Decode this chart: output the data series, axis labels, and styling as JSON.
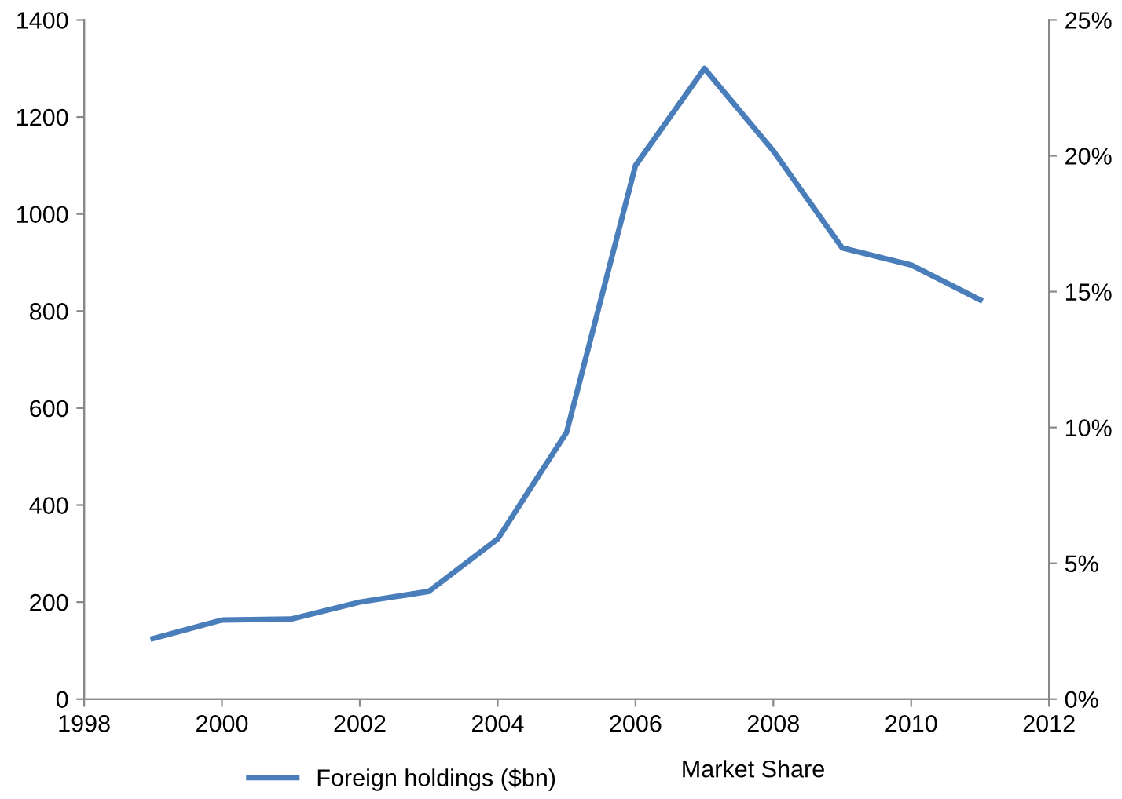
{
  "chart_data": {
    "type": "line",
    "x": [
      1999,
      2000,
      2001,
      2002,
      2003,
      2004,
      2005,
      2006,
      2007,
      2008,
      2009,
      2010,
      2011
    ],
    "series": [
      {
        "name": "Foreign holdings ($bn)",
        "color": "#4a7ebb",
        "values": [
          125,
          163,
          165,
          200,
          222,
          330,
          550,
          1100,
          1300,
          1130,
          930,
          895,
          823
        ]
      }
    ],
    "annotations": [
      "Market Share"
    ],
    "xlim": [
      1998,
      2012
    ],
    "xticks": [
      1998,
      2000,
      2002,
      2004,
      2006,
      2008,
      2010,
      2012
    ],
    "ylim": [
      0,
      1400
    ],
    "yticks": [
      0,
      200,
      400,
      600,
      800,
      1000,
      1200,
      1400
    ],
    "y2lim": [
      0,
      25
    ],
    "y2ticks": [
      {
        "value": 0,
        "label": "0%"
      },
      {
        "value": 5,
        "label": "5%"
      },
      {
        "value": 10,
        "label": "10%"
      },
      {
        "value": 15,
        "label": "15%"
      },
      {
        "value": 20,
        "label": "20%"
      },
      {
        "value": 25,
        "label": "25%"
      }
    ],
    "grid": false,
    "legend": "bottom",
    "marker": "none",
    "line_style": "solid"
  }
}
